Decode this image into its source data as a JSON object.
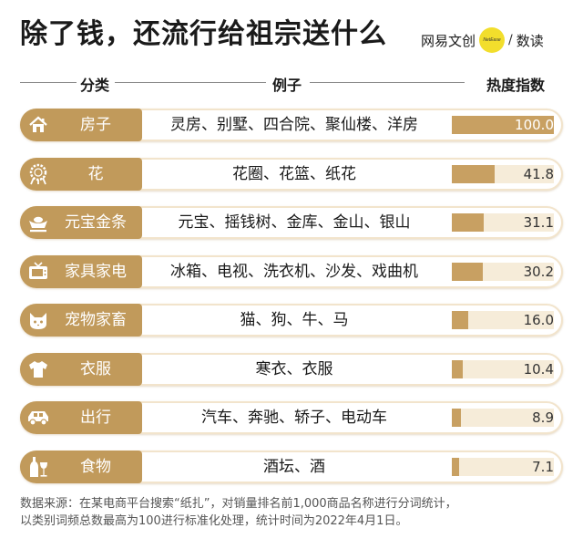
{
  "title": "除了钱，还流行给祖宗送什么",
  "brand": {
    "logo_text": "网易文创",
    "badge_text": "NetEase",
    "sub_text": "数读",
    "accent_color": "#f2de2c"
  },
  "headers": {
    "category": "分类",
    "examples": "例子",
    "index": "热度指数"
  },
  "colors": {
    "tag": "#c19a5b",
    "bar": "#c8a062",
    "track": "#f6ecd9"
  },
  "chart_data": {
    "type": "bar",
    "orientation": "horizontal",
    "title": "除了钱，还流行给祖宗送什么",
    "value_label": "热度指数",
    "xlim": [
      0,
      100
    ],
    "rows": [
      {
        "category": "房子",
        "icon": "house-icon",
        "examples": "灵房、别墅、四合院、聚仙楼、洋房",
        "value": 100.0,
        "label": "100.0"
      },
      {
        "category": "花",
        "icon": "flower-wreath-icon",
        "examples": "花圈、花篮、纸花",
        "value": 41.8,
        "label": "41.8"
      },
      {
        "category": "元宝金条",
        "icon": "ingot-icon",
        "examples": "元宝、摇钱树、金库、金山、银山",
        "value": 31.1,
        "label": "31.1"
      },
      {
        "category": "家具家电",
        "icon": "tv-icon",
        "examples": "冰箱、电视、洗衣机、沙发、戏曲机",
        "value": 30.2,
        "label": "30.2"
      },
      {
        "category": "宠物家畜",
        "icon": "cat-icon",
        "examples": "猫、狗、牛、马",
        "value": 16.0,
        "label": "16.0"
      },
      {
        "category": "衣服",
        "icon": "shirt-icon",
        "examples": "寒衣、衣服",
        "value": 10.4,
        "label": "10.4"
      },
      {
        "category": "出行",
        "icon": "car-icon",
        "examples": "汽车、奔驰、轿子、电动车",
        "value": 8.9,
        "label": "8.9"
      },
      {
        "category": "食物",
        "icon": "bottle-glass-icon",
        "examples": "酒坛、酒",
        "value": 7.1,
        "label": "7.1"
      }
    ]
  },
  "footer": {
    "line1": "数据来源：在某电商平台搜索“纸扎”，对销量排名前1,000商品名称进行分词统计，",
    "line2": "以类别词频总数最高为100进行标准化处理，统计时间为2022年4月1日。"
  }
}
